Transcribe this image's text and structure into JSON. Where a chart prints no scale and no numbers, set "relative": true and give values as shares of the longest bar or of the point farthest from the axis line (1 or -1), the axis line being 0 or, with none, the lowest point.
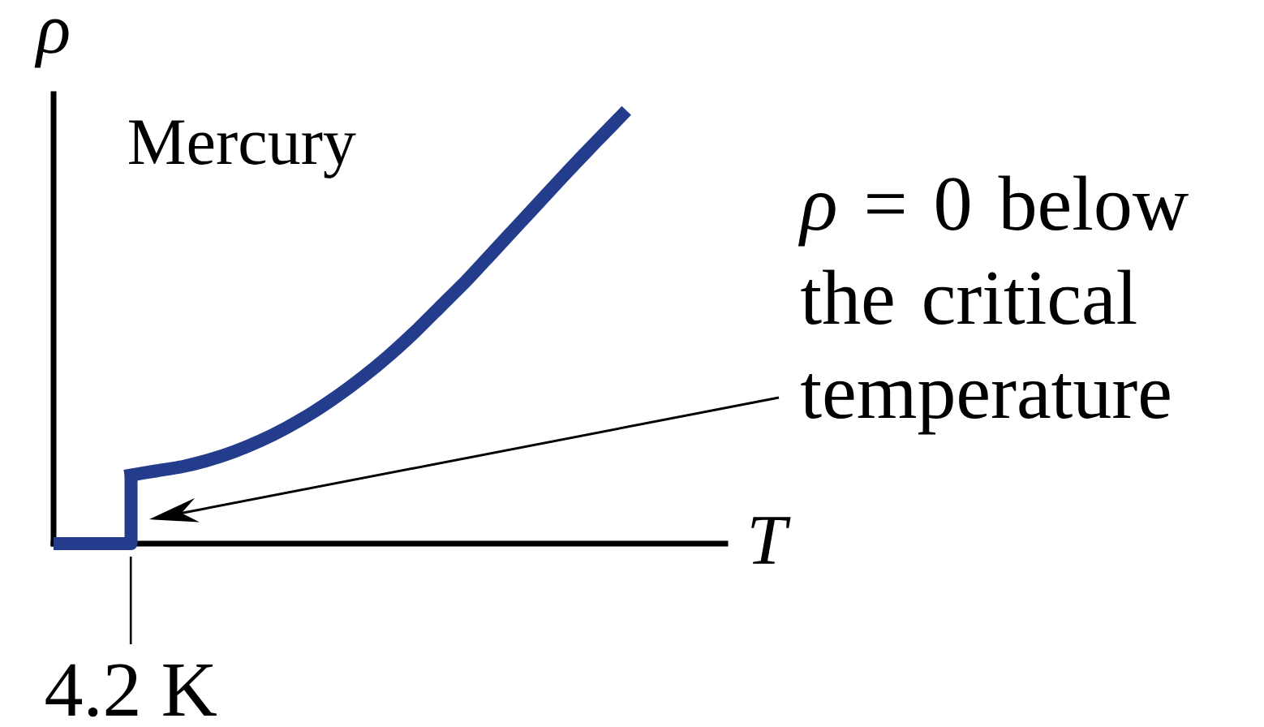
{
  "chart_data": {
    "type": "line",
    "title": "Mercury",
    "xlabel": "T",
    "ylabel": "ρ",
    "relative": true,
    "categories": [
      null,
      null,
      null,
      null,
      null,
      null,
      null,
      null,
      null,
      null,
      null,
      null,
      null,
      null,
      null,
      null,
      null,
      null,
      null,
      null,
      null,
      null,
      null,
      null,
      null,
      null,
      null
    ],
    "series": [
      {
        "type": "step",
        "color": "#233c8c",
        "values": [
          0,
          0,
          0,
          0.16,
          null,
          null,
          null,
          null,
          null,
          null,
          null,
          null,
          null,
          null,
          null,
          null,
          null,
          null,
          null,
          null,
          null,
          null,
          null,
          null,
          null,
          null,
          null
        ]
      },
      {
        "color": "#233c8c",
        "values": [
          null,
          null,
          null,
          0.16,
          0.17,
          0.18,
          0.195,
          0.215,
          0.24,
          0.27,
          0.305,
          0.345,
          0.39,
          0.44,
          0.495,
          0.555,
          0.615,
          0.68,
          0.745,
          0.81,
          0.875,
          0.938,
          1,
          null,
          null,
          null,
          null
        ]
      }
    ],
    "annotations": [
      "4.2 K",
      "*ρ* = 0 below the critical temperature"
    ]
  }
}
